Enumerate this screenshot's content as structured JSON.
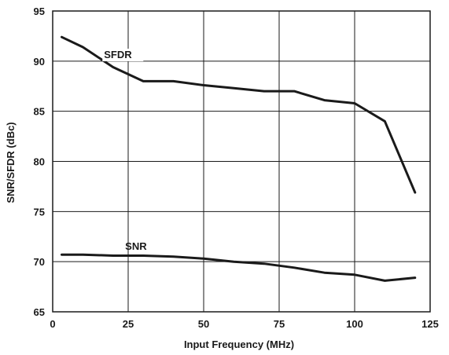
{
  "chart_data": {
    "type": "line",
    "xlabel": "Input Frequency (MHz)",
    "ylabel": "SNR/SFDR (dBc)",
    "xlim": [
      0,
      125
    ],
    "ylim": [
      65,
      95
    ],
    "xticks": [
      0,
      25,
      50,
      75,
      100,
      125
    ],
    "yticks": [
      65,
      70,
      75,
      80,
      85,
      90,
      95
    ],
    "x_tick_labels": [
      "0",
      "25",
      "50",
      "75",
      "100",
      "125"
    ],
    "y_tick_labels": [
      "65",
      "70",
      "75",
      "80",
      "85",
      "90",
      "95"
    ],
    "grid": true,
    "series": [
      {
        "name": "SFDR",
        "color": "#1a1a1a",
        "x": [
          3,
          10,
          20,
          30,
          40,
          50,
          60,
          70,
          80,
          90,
          100,
          110,
          120
        ],
        "y": [
          92.4,
          91.4,
          89.4,
          88.0,
          88.0,
          87.6,
          87.3,
          87.0,
          87.0,
          86.1,
          85.8,
          84.0,
          76.9
        ]
      },
      {
        "name": "SNR",
        "color": "#1a1a1a",
        "x": [
          3,
          10,
          20,
          30,
          40,
          50,
          60,
          70,
          80,
          90,
          100,
          110,
          120
        ],
        "y": [
          70.7,
          70.7,
          70.6,
          70.6,
          70.5,
          70.3,
          70.0,
          69.8,
          69.4,
          68.9,
          68.7,
          68.1,
          68.4
        ]
      }
    ]
  }
}
